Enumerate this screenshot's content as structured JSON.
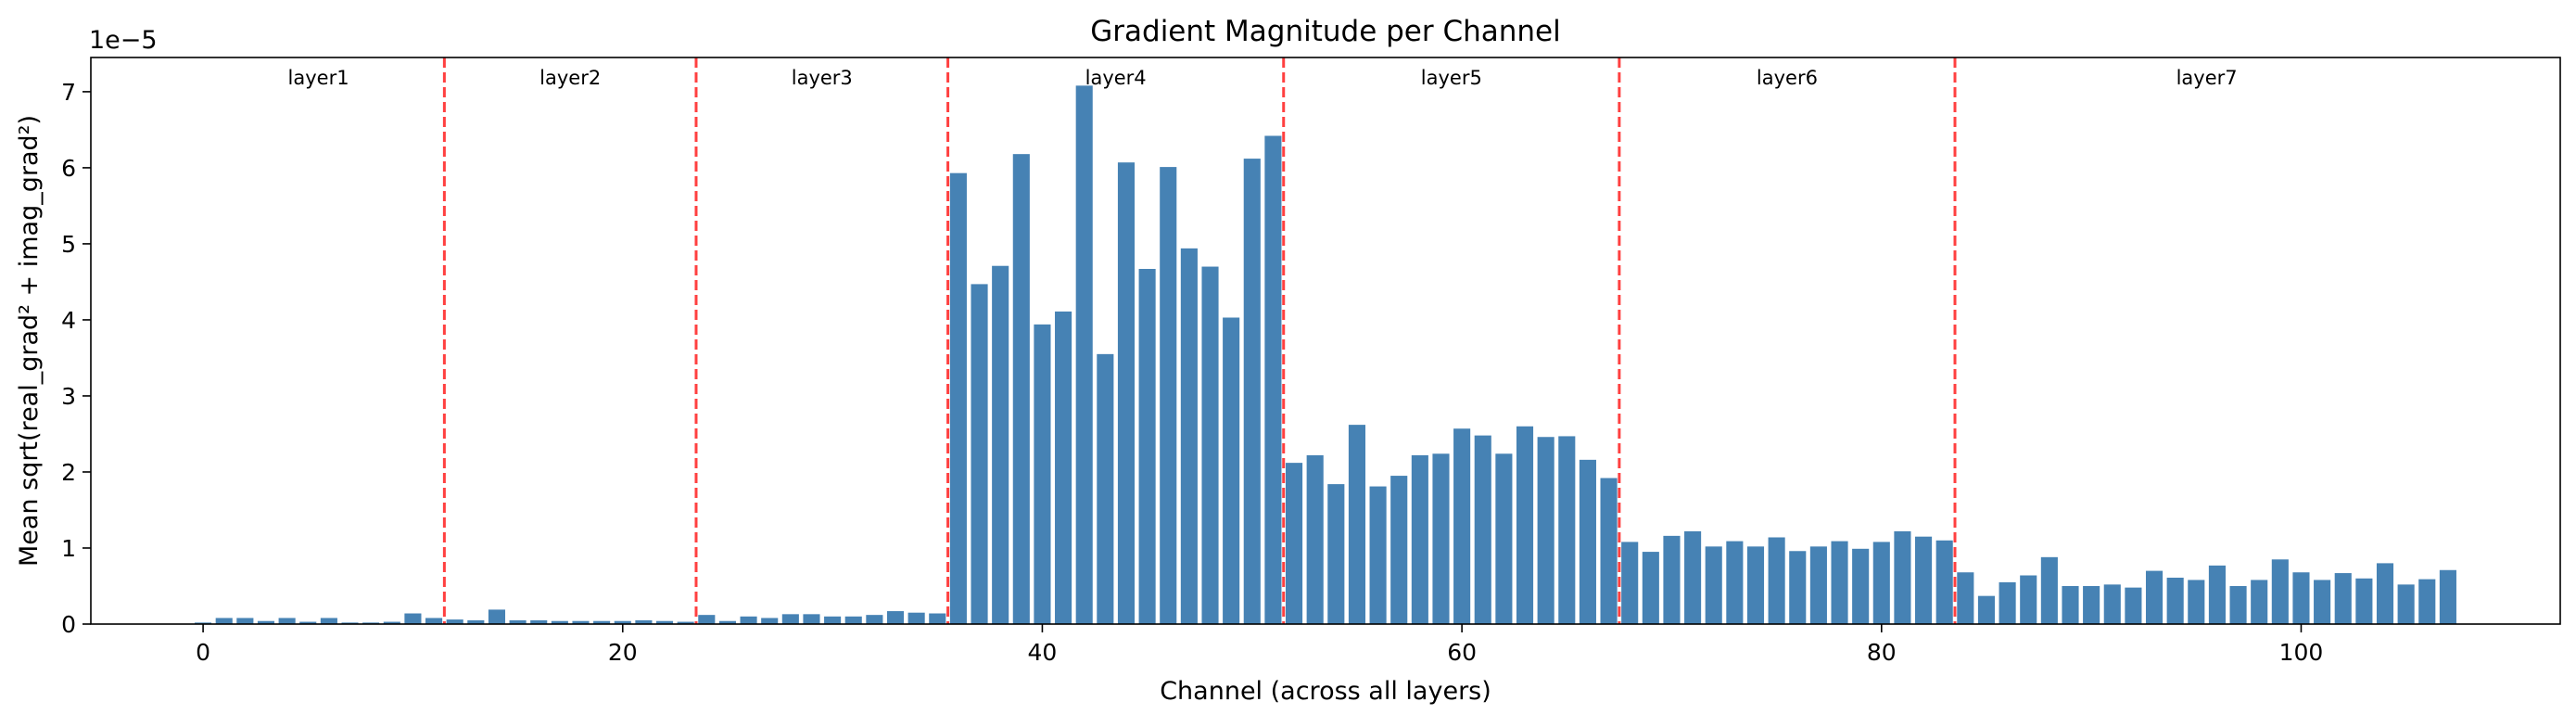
{
  "chart_data": {
    "type": "bar",
    "title": "Gradient Magnitude per Channel",
    "xlabel": "Channel (across all layers)",
    "ylabel": "Mean sqrt(real_grad² + imag_grad²)",
    "y_scale_label": "1e−5",
    "xlim": [
      -5.35,
      112.35
    ],
    "ylim": [
      0,
      7.45
    ],
    "xticks": [
      0,
      20,
      40,
      60,
      80,
      100
    ],
    "xtick_labels": [
      "0",
      "20",
      "40",
      "60",
      "80",
      "100"
    ],
    "yticks": [
      0,
      1,
      2,
      3,
      4,
      5,
      6,
      7
    ],
    "ytick_labels": [
      "0",
      "1",
      "2",
      "3",
      "4",
      "5",
      "6",
      "7"
    ],
    "grid": false,
    "bar_color": "#4682b4",
    "separator_color": "#ff0000",
    "layer_boundaries": [
      11.5,
      23.5,
      35.5,
      51.5,
      67.5,
      83.5
    ],
    "layers": [
      {
        "label": "layer1",
        "center": 5.5
      },
      {
        "label": "layer2",
        "center": 17.5
      },
      {
        "label": "layer3",
        "center": 29.5
      },
      {
        "label": "layer4",
        "center": 43.5
      },
      {
        "label": "layer5",
        "center": 59.5
      },
      {
        "label": "layer6",
        "center": 75.5
      },
      {
        "label": "layer7",
        "center": 95.5
      }
    ],
    "series": [
      {
        "values": [
          0.02,
          0.08,
          0.08,
          0.04,
          0.08,
          0.03,
          0.08,
          0.02,
          0.02,
          0.03,
          0.14,
          0.08,
          0.06,
          0.05,
          0.19,
          0.05,
          0.05,
          0.04,
          0.04,
          0.04,
          0.04,
          0.05,
          0.04,
          0.03,
          0.12,
          0.04,
          0.1,
          0.08,
          0.13,
          0.13,
          0.1,
          0.1,
          0.12,
          0.17,
          0.15,
          0.14,
          5.93,
          4.47,
          4.71,
          6.18,
          3.94,
          4.11,
          7.08,
          3.55,
          6.07,
          4.67,
          6.01,
          4.94,
          4.7,
          4.03,
          6.12,
          6.42,
          2.12,
          2.22,
          1.84,
          2.62,
          1.81,
          1.95,
          2.22,
          2.24,
          2.57,
          2.48,
          2.24,
          2.6,
          2.46,
          2.47,
          2.16,
          1.92,
          1.08,
          0.95,
          1.16,
          1.22,
          1.02,
          1.09,
          1.02,
          1.14,
          0.96,
          1.02,
          1.09,
          0.99,
          1.08,
          1.22,
          1.15,
          1.1,
          0.68,
          0.37,
          0.55,
          0.64,
          0.88,
          0.5,
          0.5,
          0.52,
          0.48,
          0.7,
          0.61,
          0.58,
          0.77,
          0.5,
          0.58,
          0.85,
          0.68,
          0.58,
          0.67,
          0.6,
          0.8,
          0.52,
          0.59,
          0.71
        ]
      }
    ]
  }
}
